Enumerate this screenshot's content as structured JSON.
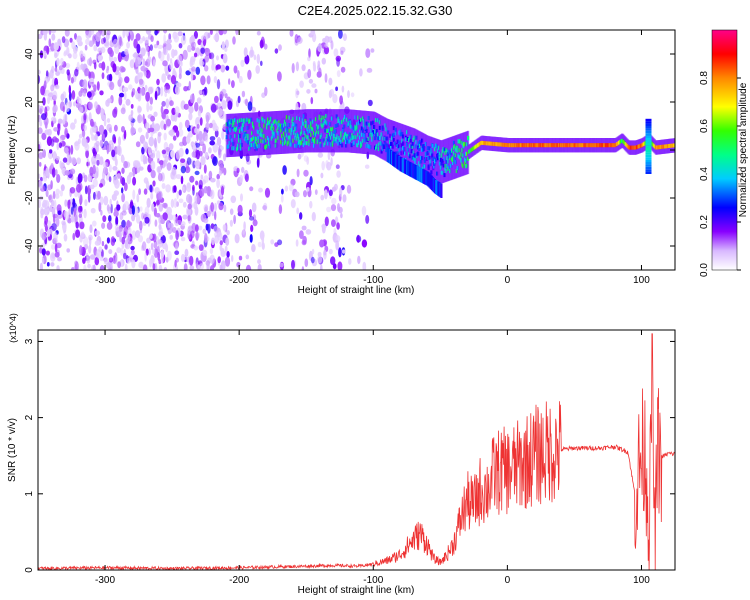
{
  "figure": {
    "title": "C2E4.2025.022.15.32.G30"
  },
  "chart_data": [
    {
      "type": "heatmap",
      "xlabel": "Height of straight line (km)",
      "ylabel": "Frequency (Hz)",
      "xlim": [
        -350,
        125
      ],
      "ylim": [
        -50,
        50
      ],
      "xticks": [
        -300,
        -200,
        -100,
        0,
        100
      ],
      "yticks": [
        -40,
        -20,
        0,
        20,
        40
      ],
      "colorbar": {
        "label": "Normalized spectral amplitude",
        "range": [
          0,
          1
        ],
        "ticks": [
          "0.0",
          "0.2",
          "0.4",
          "0.6",
          "0.8"
        ],
        "colors": [
          "#ffffff",
          "#8800ff",
          "#0000ff",
          "#00ffff",
          "#00ff00",
          "#ffff00",
          "#ff8800",
          "#ff0000",
          "#ff0088"
        ]
      },
      "ridge": {
        "x": [
          -210,
          -180,
          -150,
          -120,
          -100,
          -90,
          -80,
          -70,
          -60,
          -50,
          -40,
          -30,
          -25,
          -20,
          0,
          20,
          40,
          60,
          80,
          85,
          90,
          95,
          100,
          105,
          110,
          125
        ],
        "y": [
          6,
          7,
          8,
          8,
          7,
          4,
          2,
          0,
          -3,
          -5,
          -3,
          -1,
          1,
          3,
          2,
          2,
          2,
          2,
          2,
          4,
          1,
          1,
          2,
          4,
          1,
          2
        ],
        "amplitude": [
          0.4,
          0.45,
          0.45,
          0.4,
          0.35,
          0.3,
          0.3,
          0.35,
          0.3,
          0.35,
          0.45,
          0.5,
          0.6,
          0.75,
          0.8,
          0.82,
          0.82,
          0.82,
          0.85,
          0.5,
          0.85,
          0.85,
          0.8,
          0.4,
          0.8,
          0.75
        ]
      },
      "branch": {
        "x": [
          -90,
          -80,
          -70,
          -60,
          -55,
          -50
        ],
        "y": [
          -2,
          -6,
          -9,
          -12,
          -15,
          -17
        ]
      }
    },
    {
      "type": "line",
      "xlabel": "Height of straight line (km)",
      "ylabel": "SNR (10 * v/v)",
      "y_scale_label": "(x10^4)",
      "xlim": [
        -350,
        125
      ],
      "ylim": [
        0,
        3.15
      ],
      "xticks": [
        -300,
        -200,
        -100,
        0,
        100
      ],
      "yticks": [
        0,
        1,
        2,
        3
      ],
      "color": "#ee3333",
      "series": [
        {
          "x": [
            -350,
            -300,
            -250,
            -200,
            -150,
            -130,
            -110,
            -100,
            -90,
            -80,
            -70,
            -65,
            -60,
            -55,
            -50,
            -45,
            -40,
            -35,
            -30,
            -25,
            -20,
            -15,
            -10,
            -5,
            0,
            10,
            20,
            30,
            40,
            50,
            60,
            70,
            80,
            90,
            95,
            100,
            103,
            106,
            108,
            110,
            112,
            115,
            120,
            125
          ],
          "y": [
            0.02,
            0.03,
            0.02,
            0.03,
            0.05,
            0.06,
            0.05,
            0.08,
            0.12,
            0.2,
            0.4,
            0.48,
            0.35,
            0.15,
            0.1,
            0.2,
            0.35,
            0.65,
            0.9,
            0.85,
            1.05,
            1.05,
            1.25,
            1.3,
            1.3,
            1.38,
            1.5,
            1.55,
            1.58,
            1.6,
            1.6,
            1.6,
            1.62,
            1.55,
            1.0,
            1.5,
            1.55,
            0.5,
            2.9,
            0.1,
            1.6,
            1.48,
            1.53,
            1.52
          ]
        }
      ]
    }
  ]
}
